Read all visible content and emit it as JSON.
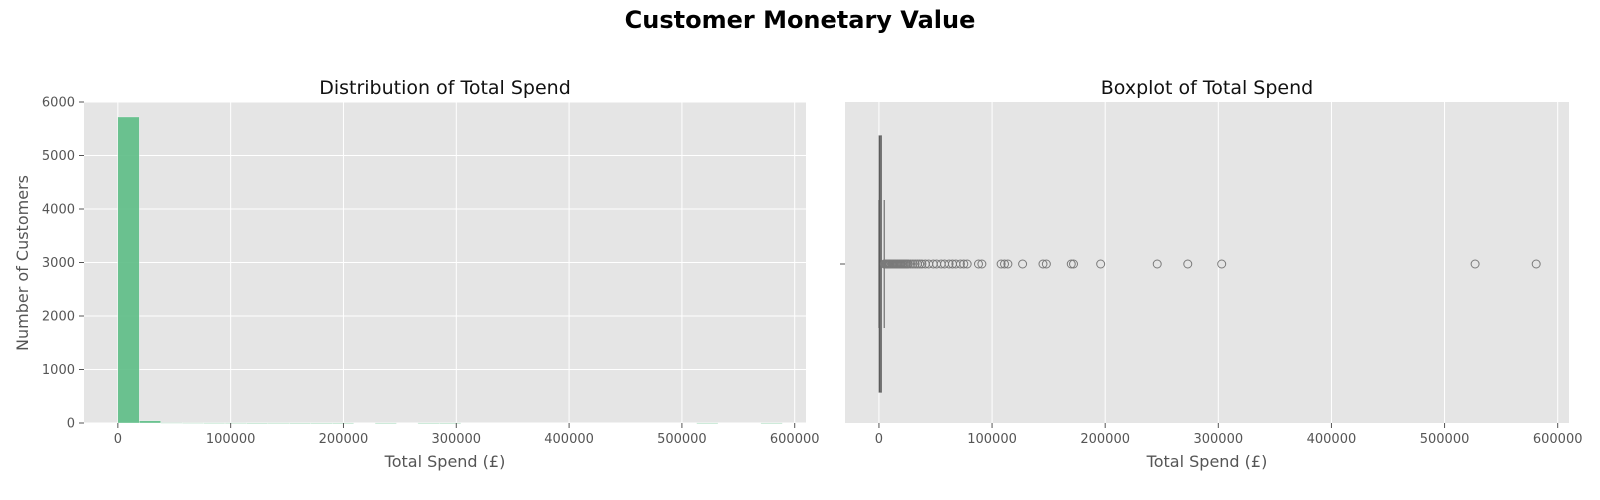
{
  "figure": {
    "title": "Customer Monetary Value"
  },
  "chart_data": [
    {
      "type": "bar",
      "title": "Distribution of Total Spend",
      "xlabel": "Total Spend (£)",
      "ylabel": "Number of Customers",
      "xlim": [
        -30000,
        610000
      ],
      "ylim": [
        0,
        6000
      ],
      "xticks": [
        0,
        100000,
        200000,
        300000,
        400000,
        500000,
        600000
      ],
      "yticks": [
        0,
        1000,
        2000,
        3000,
        4000,
        5000,
        6000
      ],
      "bins": [
        {
          "start": 0,
          "end": 19000,
          "count": 5720
        },
        {
          "start": 19000,
          "end": 38000,
          "count": 40
        },
        {
          "start": 38000,
          "end": 57000,
          "count": 6
        },
        {
          "start": 57000,
          "end": 76000,
          "count": 4
        },
        {
          "start": 76000,
          "end": 95000,
          "count": 3
        },
        {
          "start": 95000,
          "end": 114000,
          "count": 3
        },
        {
          "start": 114000,
          "end": 133000,
          "count": 1
        },
        {
          "start": 133000,
          "end": 152000,
          "count": 2
        },
        {
          "start": 152000,
          "end": 171000,
          "count": 1
        },
        {
          "start": 171000,
          "end": 190000,
          "count": 1
        },
        {
          "start": 190000,
          "end": 209000,
          "count": 1
        },
        {
          "start": 228000,
          "end": 247000,
          "count": 1
        },
        {
          "start": 266000,
          "end": 285000,
          "count": 1
        },
        {
          "start": 285000,
          "end": 304000,
          "count": 1
        },
        {
          "start": 513000,
          "end": 532000,
          "count": 1
        },
        {
          "start": 570000,
          "end": 589000,
          "count": 1
        }
      ],
      "color": "#5cbd85",
      "grid": true
    },
    {
      "type": "box",
      "title": "Boxplot of Total Spend",
      "xlabel": "Total Spend (£)",
      "xlim": [
        -30000,
        610000
      ],
      "xticks": [
        0,
        100000,
        200000,
        300000,
        400000,
        500000,
        600000
      ],
      "box": {
        "q1": 300,
        "median": 700,
        "q3": 2000,
        "whisker_low": 0,
        "whisker_high": 4700
      },
      "outliers": [
        4800,
        5200,
        5600,
        6000,
        6500,
        7000,
        7500,
        8000,
        8500,
        9000,
        9500,
        10000,
        11000,
        12000,
        13000,
        14000,
        15000,
        16000,
        17000,
        18000,
        19000,
        20000,
        21000,
        22000,
        23000,
        24000,
        25000,
        26000,
        28000,
        30000,
        32000,
        34000,
        36000,
        38000,
        41000,
        44000,
        48000,
        51000,
        55000,
        58000,
        62000,
        65000,
        68000,
        72000,
        75000,
        78000,
        88000,
        91000,
        108000,
        111000,
        114000,
        127000,
        145000,
        148000,
        170000,
        172000,
        196000,
        246000,
        273000,
        303000,
        527000,
        581000
      ],
      "color": "#8a8a8a",
      "grid": true
    }
  ]
}
